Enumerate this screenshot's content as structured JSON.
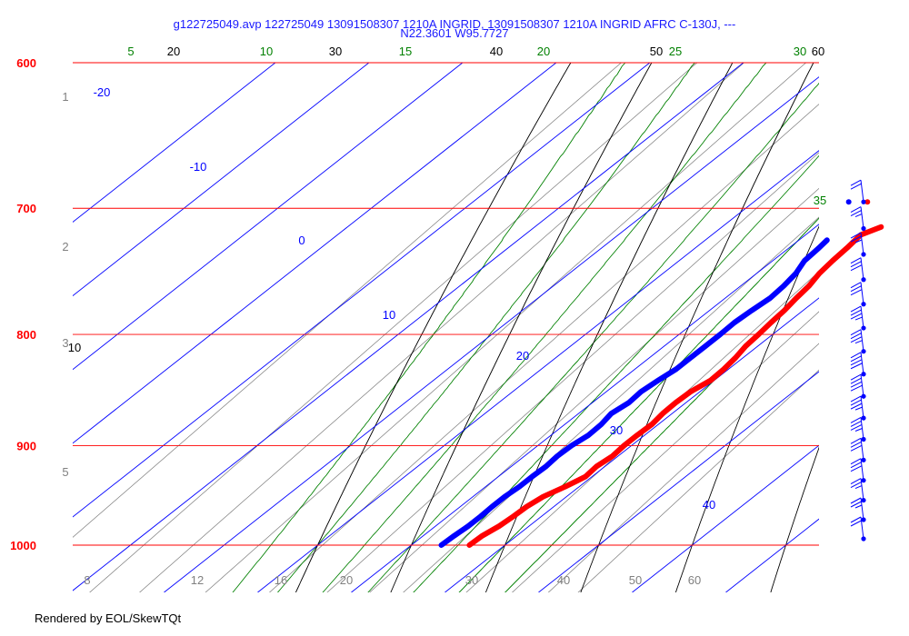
{
  "header": {
    "title_line1": "g122725049.avp 122725049 13091508307 1210A INGRID, 13091508307 1210A INGRID AFRC C-130J, ---",
    "title_line2": "N22.3601 W95.7727"
  },
  "footer": {
    "text": "Rendered by EOL/SkewTQt"
  },
  "colors": {
    "isobar": "#ff0000",
    "isotherm": "#0000ff",
    "dry_adiabat": "#000000",
    "moist_adiabat": "#008000",
    "mixing_ratio": "#808080",
    "temperature": "#ff0000",
    "dewpoint": "#0000ff",
    "wind": "#0000ff"
  },
  "chart_data": {
    "type": "skew-t log-p",
    "ylim_hpa": [
      1050,
      600
    ],
    "isobars": [
      {
        "p": 600,
        "label": "600"
      },
      {
        "p": 700,
        "label": "700"
      },
      {
        "p": 800,
        "label": "800"
      },
      {
        "p": 900,
        "label": "900"
      },
      {
        "p": 1000,
        "label": "1000"
      }
    ],
    "isotherms": [
      {
        "t": -20,
        "label": "-20"
      },
      {
        "t": -10,
        "label": "-10"
      },
      {
        "t": 0,
        "label": "0"
      },
      {
        "t": 10,
        "label": "10"
      },
      {
        "t": 20,
        "label": "20"
      },
      {
        "t": 30,
        "label": "30"
      },
      {
        "t": 40,
        "label": "40"
      }
    ],
    "dry_adiabats": [
      {
        "theta_c": 10,
        "label": "10"
      },
      {
        "theta_c": 20,
        "label": "20"
      },
      {
        "theta_c": 30,
        "label": "30"
      },
      {
        "theta_c": 40,
        "label": "40"
      },
      {
        "theta_c": 50,
        "label": "50"
      },
      {
        "theta_c": 60,
        "label": "60"
      }
    ],
    "moist_adiabats": [
      {
        "t1000": 5,
        "label": "5"
      },
      {
        "t1000": 10,
        "label": "10"
      },
      {
        "t1000": 15,
        "label": "15"
      },
      {
        "t1000": 20,
        "label": "20"
      },
      {
        "t1000": 25,
        "label": "25"
      },
      {
        "t1000": 30,
        "label": "30"
      },
      {
        "t1000": 35,
        "label": "35"
      }
    ],
    "mixing_ratio_left_labels": [
      {
        "value": 1,
        "label": "1"
      },
      {
        "value": 2,
        "label": "2"
      },
      {
        "value": 3,
        "label": "3"
      },
      {
        "value": 5,
        "label": "5"
      }
    ],
    "mixing_ratio_bottom_labels": [
      {
        "value": 8,
        "label": "8"
      },
      {
        "value": 12,
        "label": "12"
      },
      {
        "value": 16,
        "label": "16"
      },
      {
        "value": 20,
        "label": "20"
      },
      {
        "value": 30,
        "label": "30"
      },
      {
        "value": 40,
        "label": "40"
      },
      {
        "value": 50,
        "label": "50"
      },
      {
        "value": 60,
        "label": "60"
      }
    ],
    "temperature": [
      {
        "p": 1000,
        "t": 26.2
      },
      {
        "p": 990,
        "t": 26.3
      },
      {
        "p": 980,
        "t": 26.8
      },
      {
        "p": 970,
        "t": 27.0
      },
      {
        "p": 960,
        "t": 27.1
      },
      {
        "p": 950,
        "t": 27.5
      },
      {
        "p": 940,
        "t": 28.5
      },
      {
        "p": 930,
        "t": 29.3
      },
      {
        "p": 920,
        "t": 29.1
      },
      {
        "p": 910,
        "t": 29.4
      },
      {
        "p": 900,
        "t": 29.2
      },
      {
        "p": 890,
        "t": 29.2
      },
      {
        "p": 880,
        "t": 29.3
      },
      {
        "p": 870,
        "t": 29.0
      },
      {
        "p": 860,
        "t": 28.9
      },
      {
        "p": 850,
        "t": 29.0
      },
      {
        "p": 840,
        "t": 29.6
      },
      {
        "p": 830,
        "t": 29.5
      },
      {
        "p": 820,
        "t": 29.2
      },
      {
        "p": 810,
        "t": 28.7
      },
      {
        "p": 800,
        "t": 28.5
      },
      {
        "p": 790,
        "t": 28.2
      },
      {
        "p": 780,
        "t": 28.0
      },
      {
        "p": 770,
        "t": 27.6
      },
      {
        "p": 760,
        "t": 27.3
      },
      {
        "p": 750,
        "t": 26.7
      },
      {
        "p": 740,
        "t": 26.4
      },
      {
        "p": 730,
        "t": 26.2
      },
      {
        "p": 720,
        "t": 25.9
      },
      {
        "p": 714,
        "t": 27.0
      }
    ],
    "dewpoint": [
      {
        "p": 1000,
        "t": 23.2
      },
      {
        "p": 990,
        "t": 23.3
      },
      {
        "p": 980,
        "t": 23.5
      },
      {
        "p": 970,
        "t": 23.5
      },
      {
        "p": 960,
        "t": 23.4
      },
      {
        "p": 950,
        "t": 23.4
      },
      {
        "p": 940,
        "t": 23.6
      },
      {
        "p": 930,
        "t": 23.6
      },
      {
        "p": 920,
        "t": 23.7
      },
      {
        "p": 910,
        "t": 23.5
      },
      {
        "p": 900,
        "t": 23.6
      },
      {
        "p": 890,
        "t": 24.0
      },
      {
        "p": 880,
        "t": 23.9
      },
      {
        "p": 870,
        "t": 23.5
      },
      {
        "p": 860,
        "t": 23.9
      },
      {
        "p": 850,
        "t": 23.7
      },
      {
        "p": 840,
        "t": 24.0
      },
      {
        "p": 830,
        "t": 24.4
      },
      {
        "p": 820,
        "t": 24.4
      },
      {
        "p": 810,
        "t": 24.4
      },
      {
        "p": 800,
        "t": 24.4
      },
      {
        "p": 790,
        "t": 24.3
      },
      {
        "p": 780,
        "t": 24.5
      },
      {
        "p": 770,
        "t": 24.8
      },
      {
        "p": 760,
        "t": 24.6
      },
      {
        "p": 750,
        "t": 24.2
      },
      {
        "p": 740,
        "t": 23.4
      },
      {
        "p": 730,
        "t": 23.2
      },
      {
        "p": 724,
        "t": 23.0
      }
    ],
    "surface_markers": [
      {
        "p": 700,
        "t": 21.0,
        "kind": "dewpoint"
      },
      {
        "p": 700,
        "t": 23.0,
        "kind": "temperature"
      }
    ],
    "winds": [
      {
        "p": 1000,
        "dir": 180,
        "speed_kt": 20
      },
      {
        "p": 980,
        "dir": 185,
        "speed_kt": 25
      },
      {
        "p": 960,
        "dir": 190,
        "speed_kt": 25
      },
      {
        "p": 940,
        "dir": 195,
        "speed_kt": 30
      },
      {
        "p": 920,
        "dir": 200,
        "speed_kt": 30
      },
      {
        "p": 900,
        "dir": 200,
        "speed_kt": 35
      },
      {
        "p": 880,
        "dir": 200,
        "speed_kt": 35
      },
      {
        "p": 860,
        "dir": 195,
        "speed_kt": 40
      },
      {
        "p": 840,
        "dir": 190,
        "speed_kt": 40
      },
      {
        "p": 820,
        "dir": 190,
        "speed_kt": 35
      },
      {
        "p": 800,
        "dir": 185,
        "speed_kt": 35
      },
      {
        "p": 780,
        "dir": 185,
        "speed_kt": 30
      },
      {
        "p": 760,
        "dir": 180,
        "speed_kt": 30
      },
      {
        "p": 740,
        "dir": 180,
        "speed_kt": 25
      },
      {
        "p": 720,
        "dir": 180,
        "speed_kt": 25
      },
      {
        "p": 700,
        "dir": 185,
        "speed_kt": 20
      }
    ]
  }
}
